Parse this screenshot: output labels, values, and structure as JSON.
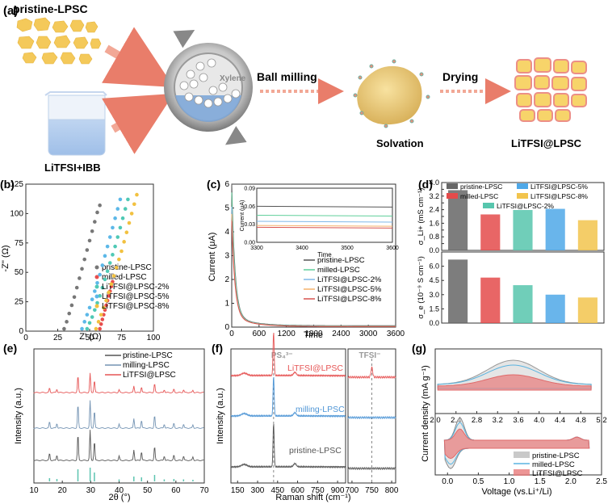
{
  "schematic": {
    "panel_label": "(a)",
    "pristine_label": "pristine-LPSC",
    "litfsi_label": "LiTFSI+IBB",
    "xylene_label": "Xylene",
    "ball_milling_label": "Ball milling",
    "solvation_label": "Solvation",
    "drying_label": "Drying",
    "product_label": "LiTFSI@LPSC"
  },
  "chart_data": [
    {
      "panel": "(b)",
      "type": "scatter",
      "title": "",
      "xlabel": "Z' (Ω)",
      "ylabel": "-Z'' (Ω)",
      "xlim": [
        0,
        100
      ],
      "ylim": [
        0,
        125
      ],
      "xticks": [
        "0",
        "25",
        "50",
        "75",
        "100"
      ],
      "yticks": [
        "0",
        "25",
        "50",
        "75",
        "100",
        "125"
      ],
      "legend": "bottom-right",
      "series": [
        {
          "name": "pristine-LPSC",
          "color": "#777777",
          "points": [
            [
              30,
              2
            ],
            [
              32,
              8
            ],
            [
              34,
              15
            ],
            [
              36,
              22
            ],
            [
              38,
              29
            ],
            [
              40,
              37
            ],
            [
              42,
              45
            ],
            [
              44,
              53
            ],
            [
              46,
              61
            ],
            [
              48,
              69
            ],
            [
              50,
              77
            ],
            [
              52,
              85
            ],
            [
              54,
              93
            ],
            [
              56,
              101
            ],
            [
              58,
              107
            ]
          ]
        },
        {
          "name": "milled-LPSC",
          "color": "#e84d4d",
          "points": [
            [
              58,
              2
            ],
            [
              59,
              6
            ],
            [
              60,
              10
            ],
            [
              61,
              14
            ],
            [
              62,
              18
            ],
            [
              63,
              22
            ],
            [
              64,
              26
            ],
            [
              65,
              30
            ],
            [
              66,
              34
            ],
            [
              67,
              38
            ],
            [
              68,
              42
            ]
          ]
        },
        {
          "name": "LiTFSI@LPSC-2%",
          "color": "#4fc9b5",
          "points": [
            [
              48,
              2
            ],
            [
              50,
              7
            ],
            [
              52,
              12
            ],
            [
              54,
              18
            ],
            [
              56,
              24
            ],
            [
              58,
              30
            ],
            [
              60,
              37
            ],
            [
              62,
              44
            ],
            [
              64,
              51
            ],
            [
              66,
              58
            ],
            [
              68,
              65
            ],
            [
              70,
              72
            ],
            [
              72,
              80
            ],
            [
              74,
              88
            ],
            [
              76,
              96
            ],
            [
              78,
              104
            ],
            [
              80,
              112
            ]
          ]
        },
        {
          "name": "LiTFSI@LPSC-5%",
          "color": "#5cb8e8",
          "points": [
            [
              44,
              2
            ],
            [
              46,
              8
            ],
            [
              48,
              14
            ],
            [
              50,
              20
            ],
            [
              52,
              27
            ],
            [
              54,
              34
            ],
            [
              56,
              41
            ],
            [
              58,
              48
            ],
            [
              60,
              56
            ],
            [
              62,
              64
            ],
            [
              64,
              72
            ],
            [
              66,
              80
            ],
            [
              68,
              88
            ],
            [
              70,
              96
            ],
            [
              72,
              104
            ],
            [
              74,
              112
            ]
          ]
        },
        {
          "name": "LiTFSI@LPSC-8%",
          "color": "#f2c140",
          "points": [
            [
              55,
              2
            ],
            [
              57,
              8
            ],
            [
              59,
              14
            ],
            [
              61,
              20
            ],
            [
              63,
              26
            ],
            [
              65,
              33
            ],
            [
              67,
              40
            ],
            [
              69,
              47
            ],
            [
              71,
              54
            ],
            [
              73,
              61
            ],
            [
              75,
              68
            ],
            [
              77,
              76
            ],
            [
              79,
              84
            ],
            [
              81,
              92
            ],
            [
              83,
              100
            ],
            [
              85,
              108
            ],
            [
              87,
              116
            ]
          ]
        }
      ]
    },
    {
      "panel": "(c)",
      "type": "line",
      "title": "",
      "xlabel": "Time",
      "ylabel": "Current (μA)",
      "xlim": [
        0,
        3600
      ],
      "ylim": [
        0,
        6
      ],
      "xticks": [
        "0",
        "600",
        "1200",
        "1800",
        "2400",
        "3000",
        "3600"
      ],
      "yticks": [
        "0",
        "1",
        "2",
        "3",
        "4",
        "5",
        "6"
      ],
      "legend": "bottom-right",
      "series": [
        {
          "name": "pristine-LPSC",
          "color": "#555555",
          "plateau": 0.06,
          "start": 5.6
        },
        {
          "name": "milled-LPSC",
          "color": "#5fcf9a",
          "plateau": 0.045,
          "start": 5.2
        },
        {
          "name": "LiTFSI@LPSC-2%",
          "color": "#7fb8e8",
          "plateau": 0.035,
          "start": 4.6
        },
        {
          "name": "LiTFSI@LPSC-5%",
          "color": "#f5b26b",
          "plateau": 0.028,
          "start": 4.3
        },
        {
          "name": "LiTFSI@LPSC-8%",
          "color": "#d9534f",
          "plateau": 0.025,
          "start": 4.0
        }
      ],
      "inset": {
        "xlabel": "Time",
        "ylabel": "Current (μA)",
        "xlim": [
          3300,
          3600
        ],
        "ylim": [
          0,
          0.09
        ],
        "xticks": [
          "3300",
          "3400",
          "3500",
          "3600"
        ],
        "yticks": [
          "0.00",
          "0.03",
          "0.06",
          "0.09"
        ]
      }
    },
    {
      "panel": "(d)",
      "type": "bar",
      "title": "",
      "categories": [
        "pristine-LPSC",
        "milled-LPSC",
        "LiTFSI@LPSC-2%",
        "LiTFSI@LPSC-5%",
        "LiTFSI@LPSC-8%"
      ],
      "colors": [
        "#666666",
        "#e44b4b",
        "#57c6ad",
        "#4fa8e8",
        "#f2c44d"
      ],
      "legend": "top-right",
      "top": {
        "ylabel": "σ_Li+ (mS cm⁻¹)",
        "ylim": [
          0,
          4.0
        ],
        "yticks": [
          "0.0",
          "0.4",
          "0.8",
          "1.2",
          "1.6",
          "2.0",
          "2.4",
          "2.8",
          "3.2",
          "3.6",
          "4.0"
        ],
        "values": [
          3.55,
          2.12,
          2.38,
          2.45,
          1.78
        ]
      },
      "bottom": {
        "ylabel": "σ_e (10⁻⁹ S cm⁻¹)",
        "ylim": [
          0,
          7.5
        ],
        "yticks": [
          "0.0",
          "1.5",
          "3.0",
          "4.5",
          "6.0"
        ],
        "values": [
          6.7,
          4.8,
          4.0,
          3.0,
          2.7
        ]
      }
    },
    {
      "panel": "(e)",
      "type": "line",
      "title": "",
      "xlabel": "2θ (°)",
      "ylabel": "Intensity (a.u.)",
      "xlim": [
        10,
        70
      ],
      "xticks": [
        "10",
        "20",
        "30",
        "40",
        "50",
        "60",
        "70"
      ],
      "legend": "top-right",
      "peaks": [
        15.5,
        18.1,
        25.5,
        29.8,
        31.3,
        40.0,
        45.2,
        47.9,
        52.5,
        55.9,
        59.3,
        62.7,
        66.0
      ],
      "series": [
        {
          "name": "pristine-LPSC",
          "color": "#555555"
        },
        {
          "name": "milling-LPSC",
          "color": "#7393b3"
        },
        {
          "name": "LiTFSI@LPSC",
          "color": "#e65555"
        }
      ],
      "reference_color": "#5cc4b0"
    },
    {
      "panel": "(f)",
      "type": "line",
      "title": "",
      "xlabel": "Raman shift (cm⁻¹)",
      "ylabel": "Intensity (a.u.)",
      "xticks_left": [
        "150",
        "300",
        "450",
        "600",
        "750",
        "900"
      ],
      "xticks_right": [
        "700",
        "750",
        "800"
      ],
      "annot_ps4": "PS₄³⁻",
      "annot_tfsi": "TFSI⁻",
      "series": [
        {
          "name": "LiTFSI@LPSC",
          "color": "#e65555"
        },
        {
          "name": "milling-LPSC",
          "color": "#4f96d6"
        },
        {
          "name": "pristine-LPSC",
          "color": "#555555"
        }
      ]
    },
    {
      "panel": "(g)",
      "type": "line",
      "title": "",
      "ylabel": "Current density (mA g⁻¹)",
      "xlabel": "Voltage (vs.Li⁺/Li)",
      "xticks_top": [
        "2.0",
        "2.4",
        "2.8",
        "3.2",
        "3.6",
        "4.0",
        "4.4",
        "4.8",
        "5.2"
      ],
      "xticks_bottom": [
        "0.0",
        "0.5",
        "1.0",
        "1.5",
        "2.0",
        "2.5"
      ],
      "legend": "bottom-right",
      "series": [
        {
          "name": "pristine-LPSC",
          "color": "#bbbbbb"
        },
        {
          "name": "milled-LPSC",
          "color": "#5ab4e0"
        },
        {
          "name": "LiTFSI@LPSC",
          "color": "#e87a7a"
        }
      ]
    }
  ]
}
